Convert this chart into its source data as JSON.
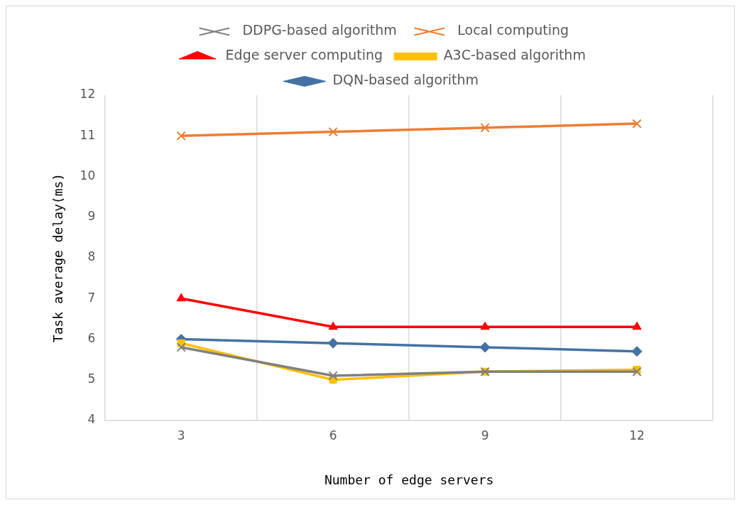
{
  "chart_data": {
    "type": "line",
    "xlabel": "Number of edge servers",
    "ylabel": "Task average delay(ms)",
    "categories": [
      "3",
      "6",
      "9",
      "12"
    ],
    "ylim": [
      4,
      12
    ],
    "yticks": [
      4,
      5,
      6,
      7,
      8,
      9,
      10,
      11,
      12
    ],
    "grid": "x",
    "legend": "top",
    "series": [
      {
        "name": "DQN-based algorithm",
        "color": "#4472a4",
        "marker": "diamond",
        "values": [
          6.0,
          5.9,
          5.8,
          5.7
        ]
      },
      {
        "name": "A3C-based algorithm",
        "color": "#ffc000",
        "marker": "square",
        "values": [
          5.9,
          5.0,
          5.2,
          5.25
        ]
      },
      {
        "name": "Edge server computing",
        "color": "#ff0000",
        "marker": "triangle",
        "values": [
          7.0,
          6.3,
          6.3,
          6.3
        ]
      },
      {
        "name": "Local computing",
        "color": "#ed7d31",
        "marker": "cross",
        "values": [
          11.0,
          11.1,
          11.2,
          11.3
        ]
      },
      {
        "name": "DDPG-based algorithm",
        "color": "#808080",
        "marker": "cross",
        "values": [
          5.8,
          5.1,
          5.2,
          5.2
        ]
      }
    ]
  }
}
